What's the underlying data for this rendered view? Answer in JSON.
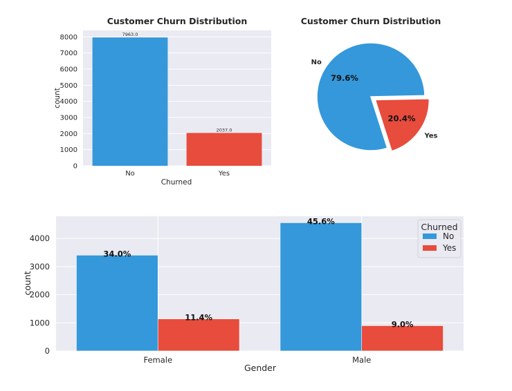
{
  "chart_data": [
    {
      "type": "bar",
      "title": "Customer Churn Distribution",
      "categories": [
        "No",
        "Yes"
      ],
      "values": [
        7963.0,
        2037.0
      ],
      "data_labels": [
        "7963.0",
        "2037.0"
      ],
      "xlabel": "Churned",
      "ylabel": "count",
      "ylim": [
        0,
        8400
      ],
      "yticks": [
        "0",
        "1000",
        "2000",
        "3000",
        "4000",
        "5000",
        "6000",
        "7000",
        "8000"
      ],
      "grid": true,
      "colors": [
        "#3498db",
        "#e74c3c"
      ]
    },
    {
      "type": "pie",
      "title": "Customer Churn Distribution",
      "labels": [
        "No",
        "Yes"
      ],
      "values": [
        79.6,
        20.4
      ],
      "pct_labels": [
        "79.6%",
        "20.4%"
      ],
      "explode": [
        0,
        0.1
      ],
      "colors": [
        "#3498db",
        "#e74c3c"
      ]
    },
    {
      "type": "bar",
      "title": "",
      "categories": [
        "Female",
        "Male"
      ],
      "series": [
        {
          "name": "No",
          "values": [
            3405,
            4558
          ],
          "data_labels": [
            "34.0%",
            "45.6%"
          ]
        },
        {
          "name": "Yes",
          "values": [
            1139,
            898
          ],
          "data_labels": [
            "11.4%",
            "9.0%"
          ]
        }
      ],
      "xlabel": "Gender",
      "ylabel": "count",
      "ylim": [
        0,
        4790
      ],
      "yticks": [
        "0",
        "1000",
        "2000",
        "3000",
        "4000"
      ],
      "legend": {
        "title": "Churned",
        "placement": "upper-right"
      },
      "grid": true,
      "colors": [
        "#3498db",
        "#e74c3c"
      ]
    }
  ]
}
